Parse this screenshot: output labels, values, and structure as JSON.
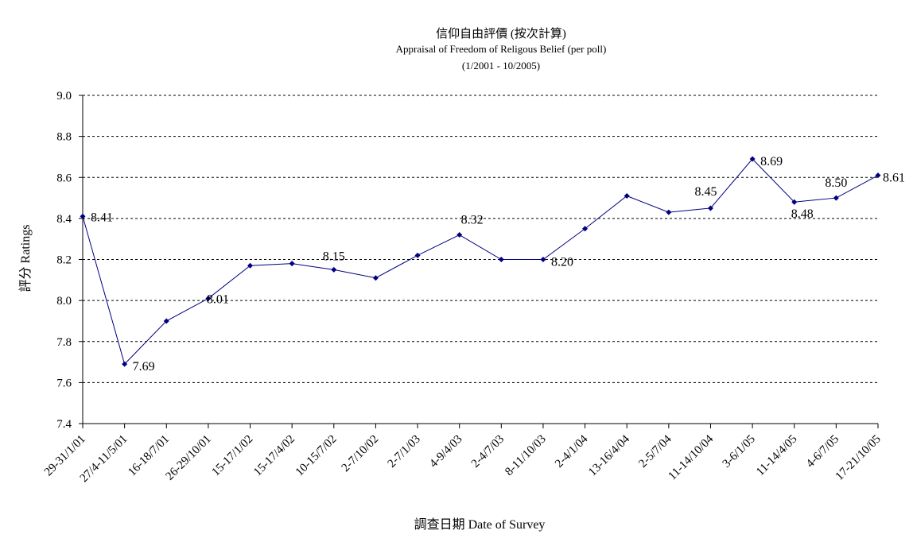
{
  "chart_data": {
    "type": "line",
    "title": "信仰自由評價 (按次計算)",
    "subtitle": "Appraisal of Freedom of Religous Belief (per poll)",
    "period": "(1/2001 - 10/2005)",
    "xlabel": "調查日期 Date of Survey",
    "ylabel": "評分 Ratings",
    "ylim": [
      7.4,
      9.0
    ],
    "yticks": [
      "7.4",
      "7.6",
      "7.8",
      "8.0",
      "8.2",
      "8.4",
      "8.6",
      "8.8",
      "9.0"
    ],
    "grid": true,
    "color": "#000080",
    "categories": [
      "29-31/1/01",
      "27/4-11/5/01",
      "16-18/7/01",
      "26-29/10/01",
      "15-17/1/02",
      "15-17/4/02",
      "10-15/7/02",
      "2-7/10/02",
      "2-7/1/03",
      "4-9/4/03",
      "2-4/7/03",
      "8-11/10/03",
      "2-4/1/04",
      "13-16/4/04",
      "2-5/7/04",
      "11-14/10/04",
      "3-6/1/05",
      "11-14/4/05",
      "4-6/7/05",
      "17-21/10/05"
    ],
    "values": [
      8.41,
      7.69,
      7.9,
      8.01,
      8.17,
      8.18,
      8.15,
      8.11,
      8.22,
      8.32,
      8.2,
      8.2,
      8.35,
      8.51,
      8.43,
      8.45,
      8.69,
      8.48,
      8.5,
      8.61
    ],
    "data_labels": [
      {
        "index": 0,
        "text": "8.41"
      },
      {
        "index": 1,
        "text": "7.69"
      },
      {
        "index": 3,
        "text": "8.01"
      },
      {
        "index": 6,
        "text": "8.15"
      },
      {
        "index": 9,
        "text": "8.32"
      },
      {
        "index": 11,
        "text": "8.20"
      },
      {
        "index": 15,
        "text": "8.45"
      },
      {
        "index": 16,
        "text": "8.69"
      },
      {
        "index": 17,
        "text": "8.48"
      },
      {
        "index": 18,
        "text": "8.50"
      },
      {
        "index": 19,
        "text": "8.61"
      }
    ]
  }
}
